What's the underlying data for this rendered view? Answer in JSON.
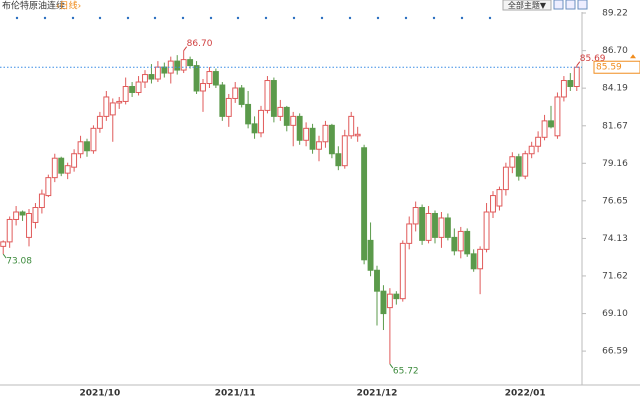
{
  "chart_data": {
    "type": "candlestick",
    "title": "布伦特原油连续",
    "period": "‹日线›",
    "theme_button": "全部主题▼",
    "categories": [
      null,
      null,
      null,
      null,
      null,
      null,
      null,
      null,
      null,
      null,
      null,
      null,
      null,
      null,
      null,
      "2021/10",
      null,
      null,
      null,
      null,
      null,
      null,
      null,
      null,
      null,
      null,
      null,
      null,
      null,
      null,
      null,
      null,
      null,
      null,
      null,
      null,
      "2021/11",
      null,
      null,
      null,
      null,
      null,
      null,
      null,
      null,
      null,
      null,
      null,
      null,
      null,
      null,
      null,
      null,
      null,
      null,
      null,
      null,
      null,
      "2021/12",
      null,
      null,
      null,
      null,
      null,
      null,
      null,
      null,
      null,
      null,
      null,
      null,
      null,
      null,
      null,
      null,
      null,
      null,
      null,
      null,
      null,
      null,
      "2022/01",
      null,
      null,
      null,
      null,
      null,
      null,
      null,
      null
    ],
    "open": [
      73.6,
      73.9,
      75.4,
      75.9,
      74.2,
      75.2,
      76.2,
      77.0,
      78.2,
      79.5,
      78.5,
      78.9,
      79.8,
      80.6,
      80.0,
      81.5,
      82.3,
      82.4,
      83.2,
      83.3,
      84.3,
      83.9,
      84.6,
      85.1,
      84.8,
      85.6,
      85.2,
      86.0,
      85.4,
      86.1,
      85.7,
      84.0,
      84.5,
      85.3,
      84.4,
      82.3,
      83.5,
      84.2,
      83.1,
      81.8,
      81.2,
      82.7,
      84.7,
      82.3,
      82.9,
      81.7,
      82.3,
      80.7,
      81.5,
      80.1,
      80.6,
      81.7,
      79.8,
      79.0,
      81.0,
      81.0,
      80.2,
      74.0,
      72.0,
      70.6,
      69.5,
      70.4,
      70.1,
      73.8,
      75.1,
      76.2,
      74.0,
      75.8,
      74.2,
      75.5,
      74.2,
      73.3,
      74.6,
      73.1,
      72.1,
      73.4,
      75.9,
      76.3,
      77.4,
      78.9,
      79.6,
      78.3,
      79.8,
      80.3,
      80.9,
      82.0,
      81.0,
      83.6,
      84.7,
      84.3
    ],
    "high": [
      74.0,
      75.6,
      76.3,
      76.0,
      76.1,
      76.5,
      77.4,
      78.4,
      79.8,
      79.6,
      79.2,
      80.1,
      81.0,
      80.8,
      81.7,
      82.6,
      84.0,
      83.5,
      83.6,
      84.9,
      84.6,
      85.0,
      85.4,
      85.8,
      86.0,
      85.9,
      86.3,
      86.4,
      86.7,
      86.3,
      86.0,
      84.8,
      85.6,
      85.5,
      84.6,
      83.8,
      84.6,
      84.4,
      84.0,
      82.3,
      83.0,
      85.0,
      84.9,
      83.4,
      83.0,
      82.6,
      82.5,
      81.9,
      81.8,
      81.0,
      82.0,
      81.8,
      80.3,
      81.4,
      82.6,
      81.6,
      80.4,
      75.2,
      72.3,
      71.0,
      70.8,
      70.6,
      74.0,
      75.6,
      76.6,
      76.4,
      76.3,
      76.0,
      75.9,
      75.8,
      74.8,
      74.9,
      74.8,
      73.4,
      73.6,
      76.5,
      77.3,
      77.6,
      79.2,
      79.9,
      79.8,
      80.0,
      80.6,
      81.3,
      82.4,
      83.0,
      83.9,
      85.0,
      85.2,
      85.69
    ],
    "low": [
      73.08,
      73.5,
      75.0,
      75.3,
      73.6,
      74.8,
      75.8,
      76.9,
      77.9,
      78.3,
      78.1,
      78.6,
      79.5,
      79.6,
      79.8,
      81.2,
      82.0,
      80.6,
      82.8,
      83.1,
      83.6,
      83.7,
      84.2,
      84.5,
      84.6,
      84.9,
      84.5,
      85.1,
      85.2,
      85.5,
      83.8,
      82.6,
      84.2,
      84.2,
      82.0,
      81.6,
      83.2,
      82.9,
      81.5,
      80.8,
      80.9,
      82.5,
      81.9,
      82.0,
      81.3,
      80.3,
      80.4,
      80.3,
      79.8,
      79.3,
      80.2,
      79.5,
      78.7,
      78.8,
      80.8,
      80.6,
      72.4,
      71.6,
      68.3,
      68.0,
      65.72,
      69.7,
      69.9,
      73.4,
      74.6,
      73.7,
      73.8,
      73.8,
      73.5,
      74.0,
      73.0,
      72.8,
      72.9,
      71.9,
      70.4,
      73.2,
      75.5,
      76.0,
      77.0,
      78.5,
      78.0,
      78.1,
      79.5,
      79.9,
      80.7,
      81.5,
      80.8,
      83.3,
      84.0,
      84.0
    ],
    "close": [
      73.9,
      75.4,
      75.9,
      75.7,
      75.8,
      76.2,
      77.1,
      78.2,
      79.5,
      78.5,
      79.0,
      79.8,
      80.6,
      80.0,
      81.5,
      82.3,
      83.6,
      83.2,
      83.3,
      84.3,
      83.9,
      84.6,
      85.1,
      84.8,
      85.6,
      85.2,
      86.0,
      85.4,
      86.1,
      85.7,
      84.0,
      84.5,
      85.3,
      84.4,
      82.3,
      83.5,
      84.2,
      83.1,
      81.8,
      81.2,
      82.7,
      84.7,
      82.3,
      82.9,
      81.7,
      82.3,
      80.7,
      81.5,
      80.1,
      80.6,
      81.7,
      79.8,
      79.0,
      81.0,
      82.3,
      81.1,
      72.7,
      72.0,
      70.6,
      69.1,
      70.4,
      70.1,
      73.8,
      75.1,
      76.2,
      74.0,
      75.8,
      74.2,
      75.5,
      74.2,
      73.3,
      74.6,
      73.1,
      72.1,
      73.4,
      75.9,
      77.0,
      77.4,
      78.9,
      79.6,
      78.3,
      79.8,
      80.3,
      80.9,
      82.0,
      81.6,
      83.6,
      84.7,
      84.3,
      85.59
    ],
    "up_color": "#e05a5a",
    "down_color": "#5b9a4b",
    "ylim": [
      64.32,
      90.09
    ],
    "yticks": [
      89.22,
      {
        "value": 86.7,
        "label": "86.70"
      },
      84.19,
      81.67,
      79.16,
      76.65,
      74.13,
      71.62,
      {
        "value": 69.1,
        "label": "69.10"
      },
      66.59
    ],
    "annotations": [
      {
        "label": "86.70",
        "value": 86.7,
        "color": "#d04040"
      },
      {
        "label": "65.72",
        "value": 65.72,
        "color": "#3c8a3c"
      },
      {
        "label": "73.08",
        "value": 73.08,
        "color": "#3c8a3c"
      },
      {
        "label": "85.69",
        "value": 85.69,
        "color": "#d04040"
      }
    ],
    "last_price": 85.59
  }
}
